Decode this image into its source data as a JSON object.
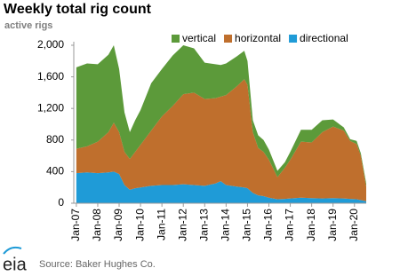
{
  "chart_data": {
    "type": "stacked-area",
    "title": "Weekly total rig count",
    "subtitle": "active rigs",
    "source": "Source: Baker Hughes Co.",
    "logo": "eia",
    "legend": "top",
    "grid": false,
    "x": [
      2007,
      2007.5,
      2008,
      2008.5,
      2008.75,
      2009,
      2009.25,
      2009.5,
      2009.75,
      2010,
      2010.5,
      2011,
      2011.5,
      2012,
      2012.5,
      2013,
      2013.5,
      2013.75,
      2014,
      2014.5,
      2014.85,
      2015,
      2015.25,
      2015.5,
      2015.75,
      2016,
      2016.4,
      2016.75,
      2017,
      2017.5,
      2018,
      2018.5,
      2019,
      2019.5,
      2019.8,
      2020.1,
      2020.3,
      2020.55
    ],
    "xlim": [
      2006.88,
      2020.55
    ],
    "xticks": [
      {
        "value": 2007,
        "label": "Jan-07"
      },
      {
        "value": 2008,
        "label": "Jan-08"
      },
      {
        "value": 2009,
        "label": "Jan-09"
      },
      {
        "value": 2010,
        "label": "Jan-10"
      },
      {
        "value": 2011,
        "label": "Jan-11"
      },
      {
        "value": 2012,
        "label": "Jan-12"
      },
      {
        "value": 2013,
        "label": "Jan-13"
      },
      {
        "value": 2014,
        "label": "Jan-14"
      },
      {
        "value": 2015,
        "label": "Jan-15"
      },
      {
        "value": 2016,
        "label": "Jan-16"
      },
      {
        "value": 2017,
        "label": "Jan-17"
      },
      {
        "value": 2018,
        "label": "Jan-18"
      },
      {
        "value": 2019,
        "label": "Jan-19"
      },
      {
        "value": 2020,
        "label": "Jan-20"
      }
    ],
    "ylim": [
      0,
      2000
    ],
    "yticks": [
      0,
      400,
      800,
      {
        "value": 1200,
        "label": "1,200"
      },
      {
        "value": 1600,
        "label": "1,600"
      },
      {
        "value": 2000,
        "label": "2,000"
      }
    ],
    "series": [
      {
        "name": "directional",
        "color": "#1f9bd7",
        "values": [
          380,
          390,
          380,
          390,
          400,
          370,
          230,
          170,
          190,
          200,
          220,
          230,
          230,
          240,
          230,
          220,
          250,
          280,
          230,
          210,
          200,
          190,
          130,
          100,
          90,
          70,
          50,
          55,
          60,
          70,
          65,
          60,
          65,
          60,
          55,
          50,
          40,
          25
        ]
      },
      {
        "name": "horizontal",
        "color": "#bf6f2d",
        "values": [
          310,
          330,
          400,
          510,
          620,
          530,
          420,
          390,
          460,
          540,
          700,
          870,
          1000,
          1140,
          1170,
          1100,
          1080,
          1070,
          1140,
          1270,
          1370,
          1310,
          770,
          600,
          560,
          480,
          280,
          395,
          490,
          710,
          705,
          840,
          905,
          860,
          735,
          700,
          560,
          185
        ]
      },
      {
        "name": "vertical",
        "color": "#5c9a3a",
        "values": [
          1030,
          1050,
          980,
          980,
          980,
          800,
          500,
          340,
          400,
          440,
          600,
          600,
          640,
          620,
          560,
          460,
          430,
          400,
          400,
          380,
          360,
          300,
          150,
          160,
          150,
          130,
          80,
          70,
          100,
          150,
          160,
          150,
          90,
          40,
          20,
          40,
          30,
          40
        ]
      }
    ]
  }
}
